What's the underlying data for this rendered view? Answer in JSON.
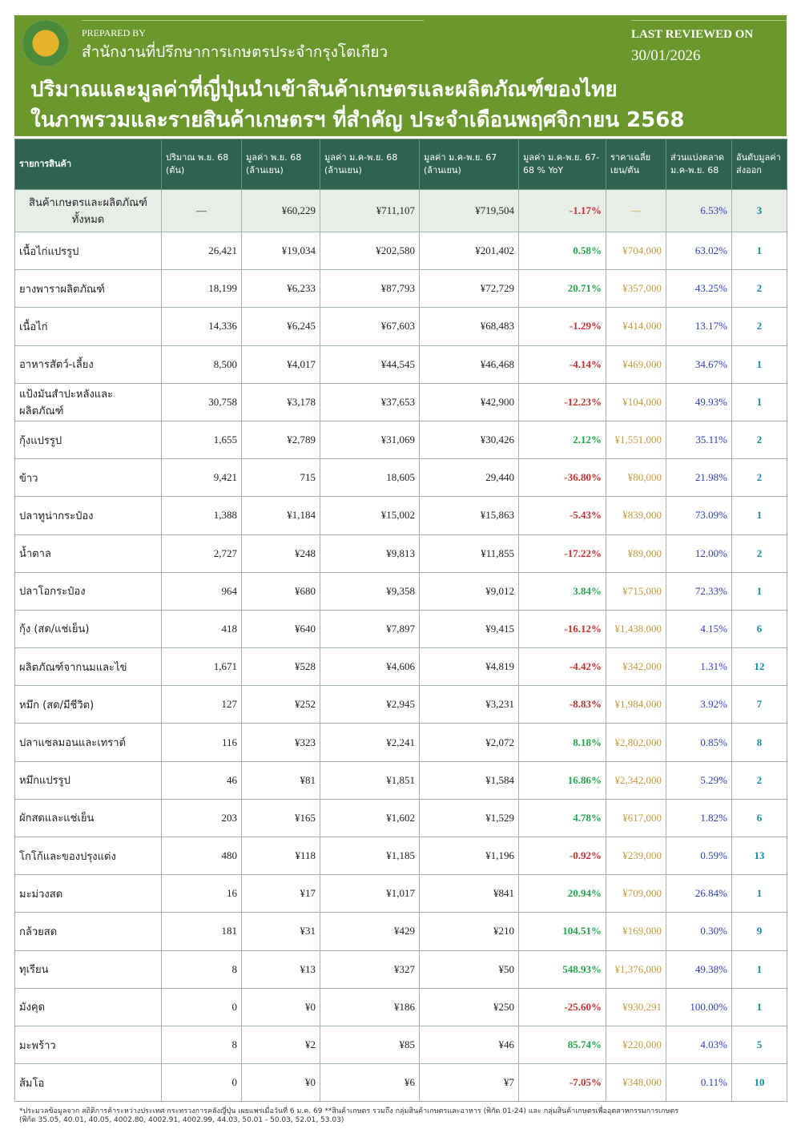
{
  "header": {
    "prepared_by": "PREPARED BY",
    "office": "สำนักงานที่ปรึกษาการเกษตรประจำกรุงโตเกียว",
    "last_reviewed_label": "LAST REVIEWED ON",
    "last_reviewed_date": "30/01/2026",
    "title_line1": "ปริมาณและมูลค่าที่ญี่ปุ่นนำเข้าสินค้าเกษตรและผลิตภัณฑ์ของไทย",
    "title_line2": "ในภาพรวมและรายสินค้าเกษตรฯ ที่สำคัญ ประจำเดือนพฤศจิกายน 2568"
  },
  "columns": [
    "รายการสินค้า",
    "ปริมาณ พ.ย. 68 (ตัน)",
    "มูลค่า พ.ย. 68 (ล้านเยน)",
    "มูลค่า ม.ค-พ.ย. 68 (ล้านเยน)",
    "มูลค่า ม.ค-พ.ย. 67 (ล้านเยน)",
    "มูลค่า ม.ค-พ.ย. 67-68 % YoY",
    "ราคาเฉลี่ย เยน/ตัน",
    "ส่วนแบ่งตลาด ม.ค-พ.ย. 68",
    "อันดับมูลค่าส่งออก"
  ],
  "total": [
    "สินค้าเกษตรและผลิตภัณฑ์ทั้งหมด",
    "—",
    "¥60,229",
    "¥711,107",
    "¥719,504",
    "-1.17%",
    "—",
    "6.53%",
    "3"
  ],
  "rows": [
    [
      "เนื้อไก่แปรรูป",
      "26,421",
      "¥19,034",
      "¥202,580",
      "¥201,402",
      "0.58%",
      "¥704,000",
      "63.02%",
      "1"
    ],
    [
      "ยางพาราผลิตภัณฑ์",
      "18,199",
      "¥6,233",
      "¥87,793",
      "¥72,729",
      "20.71%",
      "¥357,000",
      "43.25%",
      "2"
    ],
    [
      "เนื้อไก่",
      "14,336",
      "¥6,245",
      "¥67,603",
      "¥68,483",
      "-1.29%",
      "¥414,000",
      "13.17%",
      "2"
    ],
    [
      "อาหารสัตว์-เลี้ยง",
      "8,500",
      "¥4,017",
      "¥44,545",
      "¥46,468",
      "-4.14%",
      "¥469,000",
      "34.67%",
      "1"
    ],
    [
      "แป้งมันสำปะหลังและผลิตภัณฑ์",
      "30,758",
      "¥3,178",
      "¥37,653",
      "¥42,900",
      "-12.23%",
      "¥104,000",
      "49.93%",
      "1"
    ],
    [
      "กุ้งแปรรูป",
      "1,655",
      "¥2,789",
      "¥31,069",
      "¥30,426",
      "2.12%",
      "¥1,551,000",
      "35.11%",
      "2"
    ],
    [
      "ข้าว",
      "9,421",
      "715",
      "18,605",
      "29,440",
      "-36.80%",
      "¥80,000",
      "21.98%",
      "2"
    ],
    [
      "ปลาทูน่ากระป๋อง",
      "1,388",
      "¥1,184",
      "¥15,002",
      "¥15,863",
      "-5.43%",
      "¥839,000",
      "73.09%",
      "1"
    ],
    [
      "น้ำตาล",
      "2,727",
      "¥248",
      "¥9,813",
      "¥11,855",
      "-17.22%",
      "¥89,000",
      "12.00%",
      "2"
    ],
    [
      "ปลาโอกระป๋อง",
      "964",
      "¥680",
      "¥9,358",
      "¥9,012",
      "3.84%",
      "¥715,000",
      "72.33%",
      "1"
    ],
    [
      "กุ้ง (สด/แช่เย็น)",
      "418",
      "¥640",
      "¥7,897",
      "¥9,415",
      "-16.12%",
      "¥1,438,000",
      "4.15%",
      "6"
    ],
    [
      "ผลิตภัณฑ์จากนมและไข่",
      "1,671",
      "¥528",
      "¥4,606",
      "¥4,819",
      "-4.42%",
      "¥342,000",
      "1.31%",
      "12"
    ],
    [
      "หมึก (สด/มีชีวิต)",
      "127",
      "¥252",
      "¥2,945",
      "¥3,231",
      "-8.83%",
      "¥1,984,000",
      "3.92%",
      "7"
    ],
    [
      "ปลาแซลมอนและเทราต์",
      "116",
      "¥323",
      "¥2,241",
      "¥2,072",
      "8.18%",
      "¥2,802,000",
      "0.85%",
      "8"
    ],
    [
      "หมึกแปรรูป",
      "46",
      "¥81",
      "¥1,851",
      "¥1,584",
      "16.86%",
      "¥2,342,000",
      "5.29%",
      "2"
    ],
    [
      "ผักสดและแช่เย็น",
      "203",
      "¥165",
      "¥1,602",
      "¥1,529",
      "4.78%",
      "¥617,000",
      "1.82%",
      "6"
    ],
    [
      "โกโก้และของปรุงแต่ง",
      "480",
      "¥118",
      "¥1,185",
      "¥1,196",
      "-0.92%",
      "¥239,000",
      "0.59%",
      "13"
    ],
    [
      "มะม่วงสด",
      "16",
      "¥17",
      "¥1,017",
      "¥841",
      "20.94%",
      "¥709,000",
      "26.84%",
      "1"
    ],
    [
      "กล้วยสด",
      "181",
      "¥31",
      "¥429",
      "¥210",
      "104.51%",
      "¥169,000",
      "0.30%",
      "9"
    ],
    [
      "ทุเรียน",
      "8",
      "¥13",
      "¥327",
      "¥50",
      "548.93%",
      "¥1,376,000",
      "49.38%",
      "1"
    ],
    [
      "มังคุด",
      "0",
      "¥0",
      "¥186",
      "¥250",
      "-25.60%",
      "¥930,291",
      "100.00%",
      "1"
    ],
    [
      "มะพร้าว",
      "8",
      "¥2",
      "¥85",
      "¥46",
      "85.74%",
      "¥220,000",
      "4.03%",
      "5"
    ],
    [
      "ส้มโอ",
      "0",
      "¥0",
      "¥6",
      "¥7",
      "-7.05%",
      "¥348,000",
      "0.11%",
      "10"
    ]
  ],
  "footnote_line1": "*ประมวลข้อมูลจาก สถิติการค้าระหว่างประเทศ กระทรวงการคลังญี่ปุ่น เผยแพร่เมื่อวันที่ 6 ม.ค. 69 **สินค้าเกษตร รวมถึง กลุ่มสินค้าเกษตรและอาหาร (พิกัด 01-24) และ กลุ่มสินค้าเกษตรเพื่ออุตสาหกรรมการเกษตร",
  "footnote_line2": "(พิกัด 35.05, 40.01, 40.05, 4002.80, 4002.91, 4002.99, 44.03, 50.01 - 50.03, 52.01, 53.03)",
  "colors": {
    "header_green": "#6a982d",
    "table_header": "#2f6350",
    "positive": "#22a84a",
    "negative": "#c8302e"
  }
}
